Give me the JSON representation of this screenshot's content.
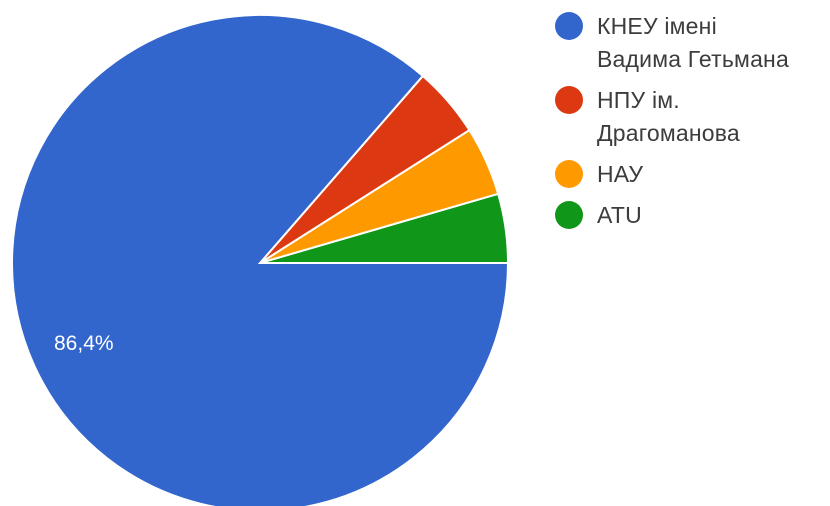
{
  "chart_data": {
    "type": "pie",
    "slices": [
      {
        "label": "КНЕУ імені\nВадима Гетьмана",
        "value": 86.4,
        "color": "#3366cc"
      },
      {
        "label": "НПУ ім.\nДрагоманова",
        "value": 4.6,
        "color": "#dc3912"
      },
      {
        "label": "НАУ",
        "value": 4.5,
        "color": "#ff9900"
      },
      {
        "label": "ATU",
        "value": 4.5,
        "color": "#109618"
      }
    ],
    "data_labels": [
      "86,4%"
    ],
    "legend_position": "right"
  }
}
